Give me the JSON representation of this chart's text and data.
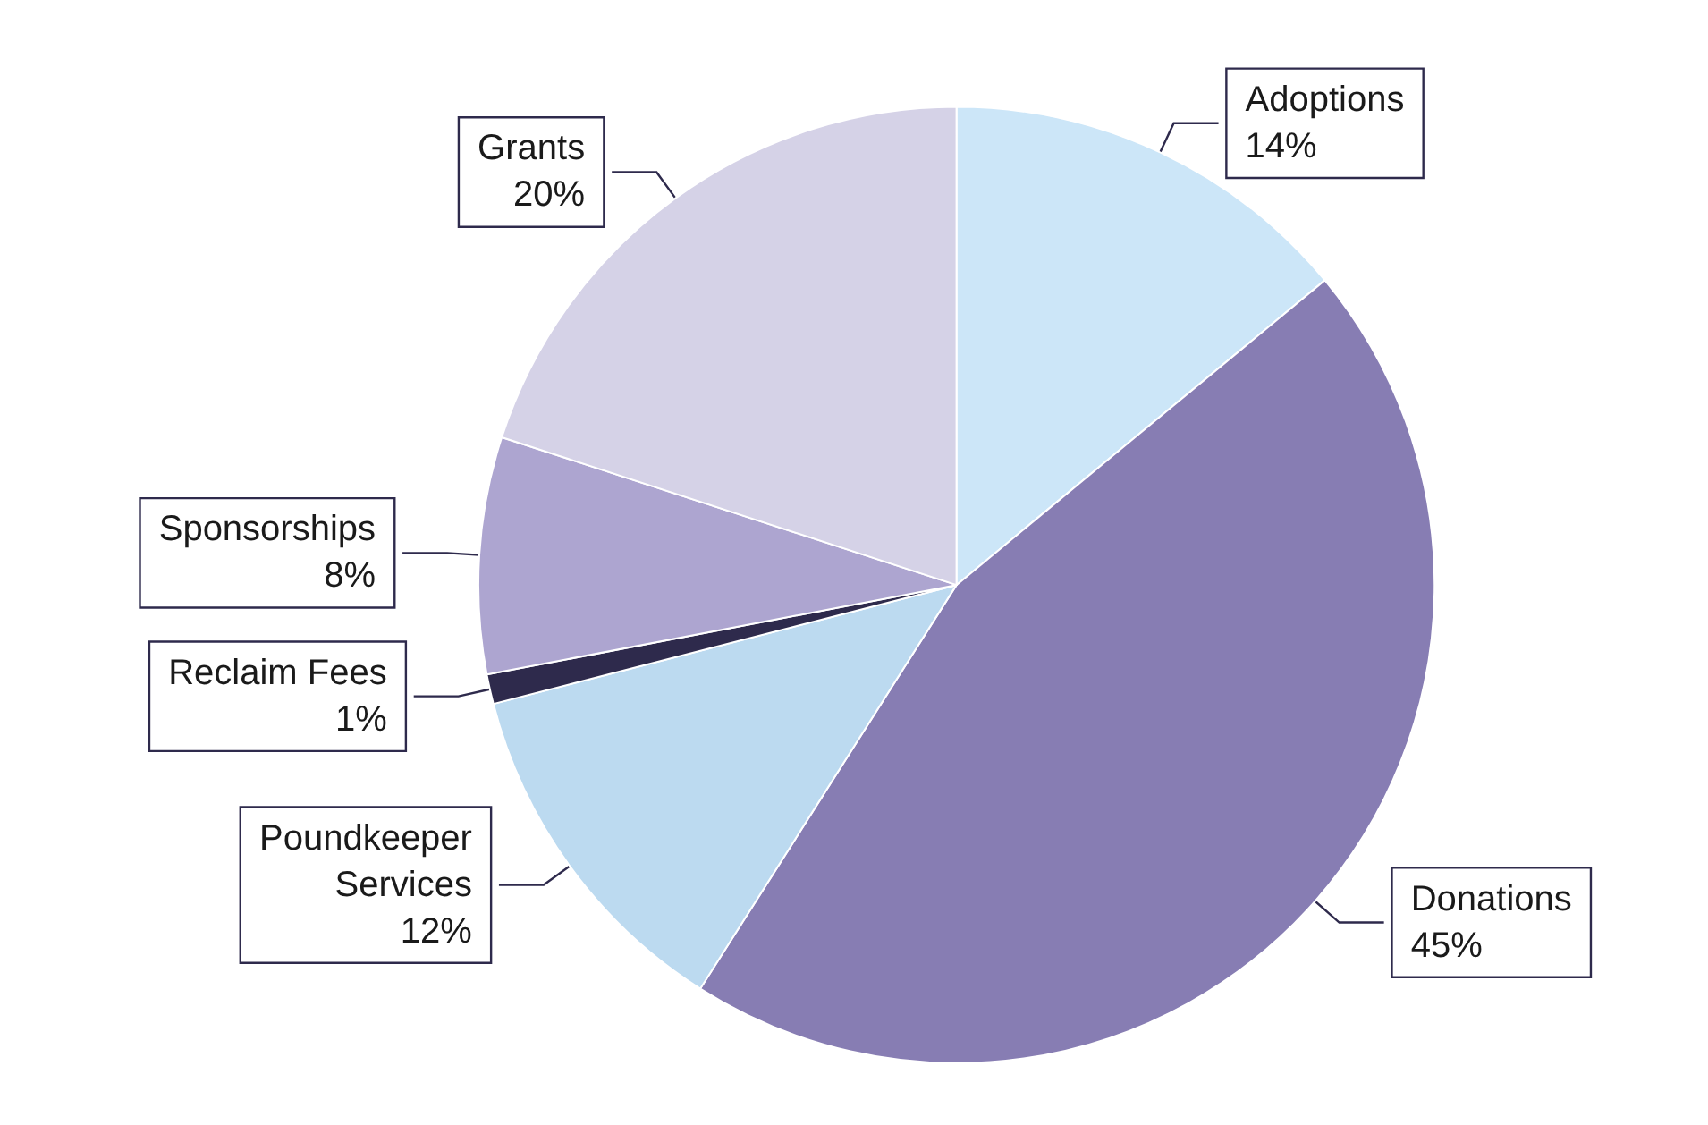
{
  "chart_data": {
    "type": "pie",
    "categories": [
      "Adoptions",
      "Donations",
      "Poundkeeper Services",
      "Reclaim Fees",
      "Sponsorships",
      "Grants"
    ],
    "values": [
      14,
      45,
      12,
      1,
      8,
      20
    ],
    "value_labels": [
      "14%",
      "45%",
      "12%",
      "1%",
      "8%",
      "20%"
    ],
    "colors": [
      "#cce6f8",
      "#877db3",
      "#bcdaf0",
      "#2e2a4c",
      "#ada5d0",
      "#d5d2e7"
    ],
    "legend": false
  }
}
